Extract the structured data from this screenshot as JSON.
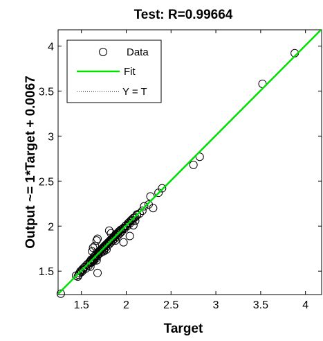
{
  "chart_data": {
    "type": "scatter",
    "title": "Test: R=0.99664",
    "xlabel": "Target",
    "ylabel": "Output ~= 1*Target + 0.0067",
    "xlim": [
      1.24,
      4.18
    ],
    "ylim": [
      1.24,
      4.18
    ],
    "xticks": [
      "1.5",
      "2",
      "2.5",
      "3",
      "3.5",
      "4"
    ],
    "yticks": [
      "1.5",
      "2",
      "2.5",
      "3",
      "3.5",
      "4"
    ],
    "fit": {
      "slope": 1,
      "intercept": 0.0067
    },
    "legend": {
      "position": "top-left",
      "entries": [
        "Data",
        "Fit",
        "Y = T"
      ]
    },
    "colors": {
      "fit": "#00e000",
      "identity": "#000000",
      "data": "#000000"
    },
    "series": [
      {
        "name": "Data",
        "points": [
          [
            1.27,
            1.25
          ],
          [
            1.44,
            1.45
          ],
          [
            1.46,
            1.44
          ],
          [
            1.47,
            1.46
          ],
          [
            1.48,
            1.48
          ],
          [
            1.49,
            1.5
          ],
          [
            1.5,
            1.49
          ],
          [
            1.51,
            1.52
          ],
          [
            1.52,
            1.51
          ],
          [
            1.53,
            1.54
          ],
          [
            1.54,
            1.55
          ],
          [
            1.55,
            1.53
          ],
          [
            1.56,
            1.57
          ],
          [
            1.57,
            1.58
          ],
          [
            1.58,
            1.56
          ],
          [
            1.59,
            1.6
          ],
          [
            1.6,
            1.61
          ],
          [
            1.6,
            1.59
          ],
          [
            1.61,
            1.63
          ],
          [
            1.62,
            1.62
          ],
          [
            1.63,
            1.64
          ],
          [
            1.63,
            1.61
          ],
          [
            1.64,
            1.66
          ],
          [
            1.65,
            1.65
          ],
          [
            1.65,
            1.67
          ],
          [
            1.66,
            1.64
          ],
          [
            1.67,
            1.68
          ],
          [
            1.67,
            1.7
          ],
          [
            1.68,
            1.67
          ],
          [
            1.69,
            1.71
          ],
          [
            1.69,
            1.69
          ],
          [
            1.7,
            1.72
          ],
          [
            1.71,
            1.7
          ],
          [
            1.71,
            1.73
          ],
          [
            1.72,
            1.74
          ],
          [
            1.73,
            1.72
          ],
          [
            1.73,
            1.75
          ],
          [
            1.74,
            1.76
          ],
          [
            1.75,
            1.74
          ],
          [
            1.75,
            1.77
          ],
          [
            1.76,
            1.78
          ],
          [
            1.77,
            1.76
          ],
          [
            1.77,
            1.79
          ],
          [
            1.78,
            1.8
          ],
          [
            1.79,
            1.78
          ],
          [
            1.79,
            1.81
          ],
          [
            1.8,
            1.82
          ],
          [
            1.81,
            1.8
          ],
          [
            1.81,
            1.83
          ],
          [
            1.82,
            1.84
          ],
          [
            1.83,
            1.82
          ],
          [
            1.83,
            1.85
          ],
          [
            1.84,
            1.86
          ],
          [
            1.85,
            1.84
          ],
          [
            1.85,
            1.87
          ],
          [
            1.86,
            1.88
          ],
          [
            1.87,
            1.86
          ],
          [
            1.87,
            1.89
          ],
          [
            1.88,
            1.9
          ],
          [
            1.89,
            1.88
          ],
          [
            1.89,
            1.91
          ],
          [
            1.9,
            1.92
          ],
          [
            1.91,
            1.9
          ],
          [
            1.91,
            1.93
          ],
          [
            1.92,
            1.94
          ],
          [
            1.93,
            1.92
          ],
          [
            1.93,
            1.95
          ],
          [
            1.94,
            1.96
          ],
          [
            1.95,
            1.94
          ],
          [
            1.96,
            1.97
          ],
          [
            1.97,
            1.98
          ],
          [
            1.98,
            1.97
          ],
          [
            1.99,
            2.0
          ],
          [
            2.0,
            2.01
          ],
          [
            2.01,
            2.0
          ],
          [
            2.02,
            2.03
          ],
          [
            2.03,
            2.04
          ],
          [
            2.04,
            2.03
          ],
          [
            2.05,
            2.06
          ],
          [
            2.06,
            2.07
          ],
          [
            2.07,
            2.06
          ],
          [
            2.08,
            2.09
          ],
          [
            2.1,
            2.1
          ],
          [
            2.12,
            2.12
          ],
          [
            2.15,
            2.14
          ],
          [
            2.18,
            2.17
          ],
          [
            2.2,
            2.22
          ],
          [
            2.25,
            2.24
          ],
          [
            1.62,
            1.72
          ],
          [
            1.63,
            1.76
          ],
          [
            1.65,
            1.78
          ],
          [
            1.67,
            1.84
          ],
          [
            1.68,
            1.86
          ],
          [
            1.6,
            1.55
          ],
          [
            1.62,
            1.6
          ],
          [
            1.64,
            1.62
          ],
          [
            1.67,
            1.62
          ],
          [
            1.68,
            1.48
          ],
          [
            1.75,
            1.72
          ],
          [
            1.78,
            1.74
          ],
          [
            1.81,
            1.95
          ],
          [
            1.83,
            1.92
          ],
          [
            1.88,
            1.84
          ],
          [
            1.97,
            1.82
          ],
          [
            2.04,
            1.89
          ],
          [
            2.08,
            2.01
          ],
          [
            2.1,
            2.06
          ],
          [
            2.12,
            2.13
          ],
          [
            2.27,
            2.33
          ],
          [
            2.3,
            2.2
          ],
          [
            2.36,
            2.37
          ],
          [
            2.4,
            2.42
          ],
          [
            2.75,
            2.68
          ],
          [
            2.82,
            2.77
          ],
          [
            3.52,
            3.58
          ],
          [
            3.88,
            3.92
          ]
        ]
      }
    ]
  }
}
